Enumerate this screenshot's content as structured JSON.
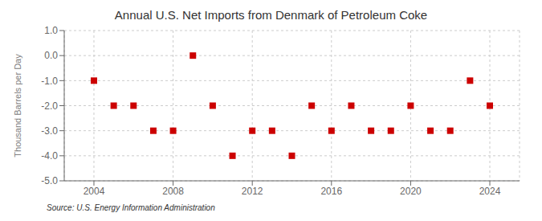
{
  "chart_data": {
    "type": "scatter",
    "title": "Annual U.S. Net Imports from Denmark of Petroleum Coke",
    "ylabel": "Thousand Barrels per Day",
    "source": "Source: U.S. Energy Information Administration",
    "x": [
      2004,
      2005,
      2006,
      2007,
      2008,
      2009,
      2010,
      2011,
      2012,
      2013,
      2014,
      2015,
      2016,
      2017,
      2018,
      2019,
      2020,
      2021,
      2022,
      2023,
      2024
    ],
    "values": [
      -1.0,
      -2.0,
      -2.0,
      -3.0,
      -3.0,
      0.0,
      -2.0,
      -4.0,
      -3.0,
      -3.0,
      -4.0,
      -2.0,
      -3.0,
      -2.0,
      -3.0,
      -3.0,
      -2.0,
      -3.0,
      -3.0,
      -1.0,
      -2.0
    ],
    "xlim": [
      2002.5,
      2025.5
    ],
    "xticks": [
      2004,
      2008,
      2012,
      2016,
      2020,
      2024
    ],
    "ylim": [
      -5.0,
      1.0
    ],
    "yticks": [
      {
        "value": 1.0,
        "label": "1.0"
      },
      {
        "value": 0.0,
        "label": "0.0"
      },
      {
        "value": -1.0,
        "label": "-1.0"
      },
      {
        "value": -2.0,
        "label": "-2.0"
      },
      {
        "value": -3.0,
        "label": "-3.0"
      },
      {
        "value": -4.0,
        "label": "-4.0"
      },
      {
        "value": -5.0,
        "label": "-5.0"
      }
    ],
    "color": "#cc0000",
    "marker": "square",
    "grid": true
  }
}
